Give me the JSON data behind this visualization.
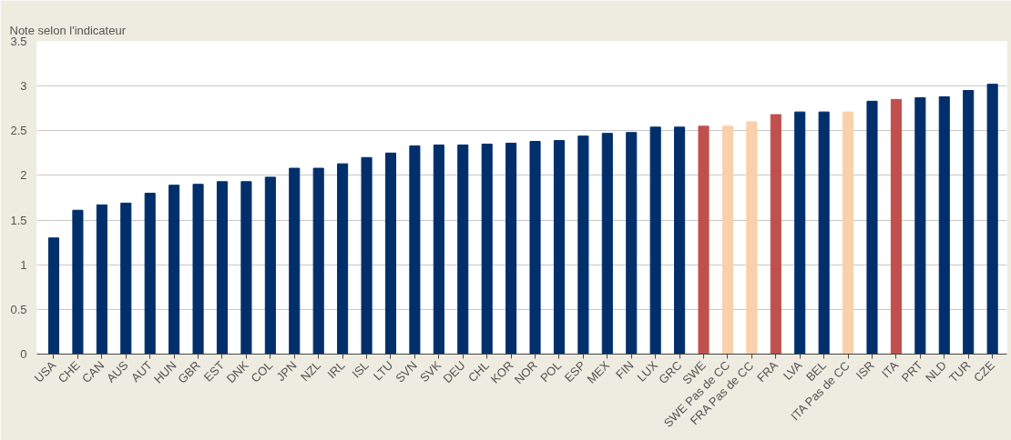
{
  "chart_data": {
    "type": "bar",
    "ylabel": "Note selon l'indicateur",
    "categories": [
      "USA",
      "CHE",
      "CAN",
      "AUS",
      "AUT",
      "HUN",
      "GBR",
      "EST",
      "DNK",
      "COL",
      "JPN",
      "NZL",
      "IRL",
      "ISL",
      "LTU",
      "SVN",
      "SVK",
      "DEU",
      "CHL",
      "KOR",
      "NOR",
      "POL",
      "ESP",
      "MEX",
      "FIN",
      "LUX",
      "GRC",
      "SWE",
      "SWE Pas de CC",
      "FRA Pas de CC",
      "FRA",
      "LVA",
      "BEL",
      "ITA Pas de CC",
      "ISR",
      "ITA",
      "PRT",
      "NLD",
      "TUR",
      "CZE"
    ],
    "values": [
      1.3,
      1.61,
      1.67,
      1.69,
      1.8,
      1.89,
      1.9,
      1.93,
      1.93,
      1.98,
      2.08,
      2.08,
      2.13,
      2.2,
      2.25,
      2.33,
      2.34,
      2.34,
      2.35,
      2.36,
      2.38,
      2.39,
      2.44,
      2.47,
      2.48,
      2.54,
      2.54,
      2.55,
      2.55,
      2.6,
      2.68,
      2.71,
      2.71,
      2.71,
      2.83,
      2.85,
      2.87,
      2.88,
      2.95,
      3.02
    ],
    "colors": [
      "#002f6c",
      "#002f6c",
      "#002f6c",
      "#002f6c",
      "#002f6c",
      "#002f6c",
      "#002f6c",
      "#002f6c",
      "#002f6c",
      "#002f6c",
      "#002f6c",
      "#002f6c",
      "#002f6c",
      "#002f6c",
      "#002f6c",
      "#002f6c",
      "#002f6c",
      "#002f6c",
      "#002f6c",
      "#002f6c",
      "#002f6c",
      "#002f6c",
      "#002f6c",
      "#002f6c",
      "#002f6c",
      "#002f6c",
      "#002f6c",
      "#c0504d",
      "#f9d0a9",
      "#f9d0a9",
      "#c0504d",
      "#002f6c",
      "#002f6c",
      "#f9d0a9",
      "#002f6c",
      "#c0504d",
      "#002f6c",
      "#002f6c",
      "#002f6c",
      "#002f6c"
    ],
    "ylim": [
      0,
      3.5
    ],
    "yticks": [
      0,
      0.5,
      1,
      1.5,
      2,
      2.5,
      3,
      3.5
    ],
    "grid": "y"
  }
}
